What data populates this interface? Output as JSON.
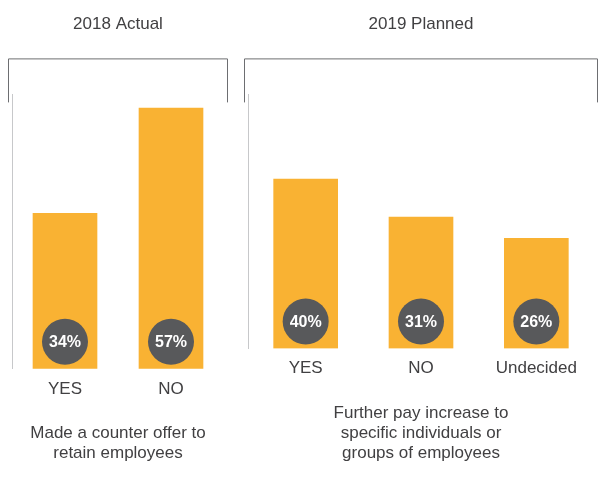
{
  "chart_data": [
    {
      "type": "bar",
      "title": "2018 Actual",
      "xlabel": "Made a counter offer to retain employees",
      "categories": [
        "YES",
        "NO"
      ],
      "values": [
        34,
        57
      ],
      "value_labels": [
        "34%",
        "57%"
      ],
      "color": "#f9b233",
      "ylim": [
        0,
        60
      ],
      "grid": false,
      "data_labels": true,
      "tick_labels": "x"
    },
    {
      "type": "bar",
      "title": "2019 Planned",
      "xlabel": "Further pay increase to specific individuals or groups of employees",
      "categories": [
        "YES",
        "NO",
        "Undecided"
      ],
      "values": [
        40,
        31,
        26
      ],
      "value_labels": [
        "40%",
        "31%",
        "26%"
      ],
      "color": "#f9b233",
      "ylim": [
        0,
        60
      ],
      "grid": false,
      "data_labels": true,
      "tick_labels": "x"
    }
  ]
}
